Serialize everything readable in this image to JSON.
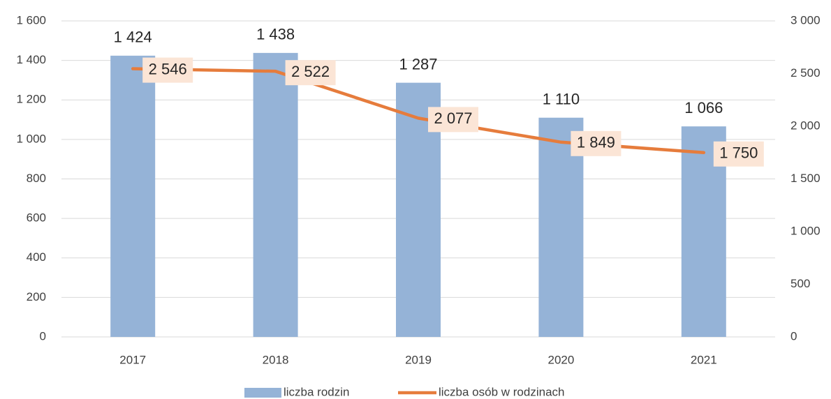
{
  "chart_data": {
    "type": "bar",
    "categories": [
      "2017",
      "2018",
      "2019",
      "2020",
      "2021"
    ],
    "series": [
      {
        "name": "liczba rodzin",
        "color": "#95b3d7",
        "values": [
          1424,
          1438,
          1287,
          1110,
          1066
        ],
        "value_labels": [
          "1 424",
          "1 438",
          "1 287",
          "1 110",
          "1 066"
        ]
      },
      {
        "name": "liczba osób w rodzinach",
        "color": "#e67c3c",
        "type": "line",
        "axis": "y2",
        "values": [
          2546,
          2522,
          2077,
          1849,
          1750
        ],
        "value_labels": [
          "2 546",
          "2 522",
          "2 077",
          "1 849",
          "1 750"
        ]
      }
    ],
    "ylim": [
      0,
      1600
    ],
    "yticks": [
      0,
      200,
      400,
      600,
      800,
      {
        "value": 1000,
        "label": "1 000"
      },
      {
        "value": 1200,
        "label": "1 200"
      },
      {
        "value": 1400,
        "label": "1 400"
      },
      {
        "value": 1600,
        "label": "1 600"
      }
    ],
    "y2lim": [
      0,
      3000
    ],
    "y2ticks": [
      0,
      500,
      {
        "value": 1000,
        "label": "1 000"
      },
      {
        "value": 1500,
        "label": "1 500"
      },
      {
        "value": 2000,
        "label": "2 000"
      },
      {
        "value": 2500,
        "label": "2 500"
      },
      {
        "value": 3000,
        "label": "3 000"
      }
    ],
    "grid": true,
    "legend": "bottom"
  }
}
